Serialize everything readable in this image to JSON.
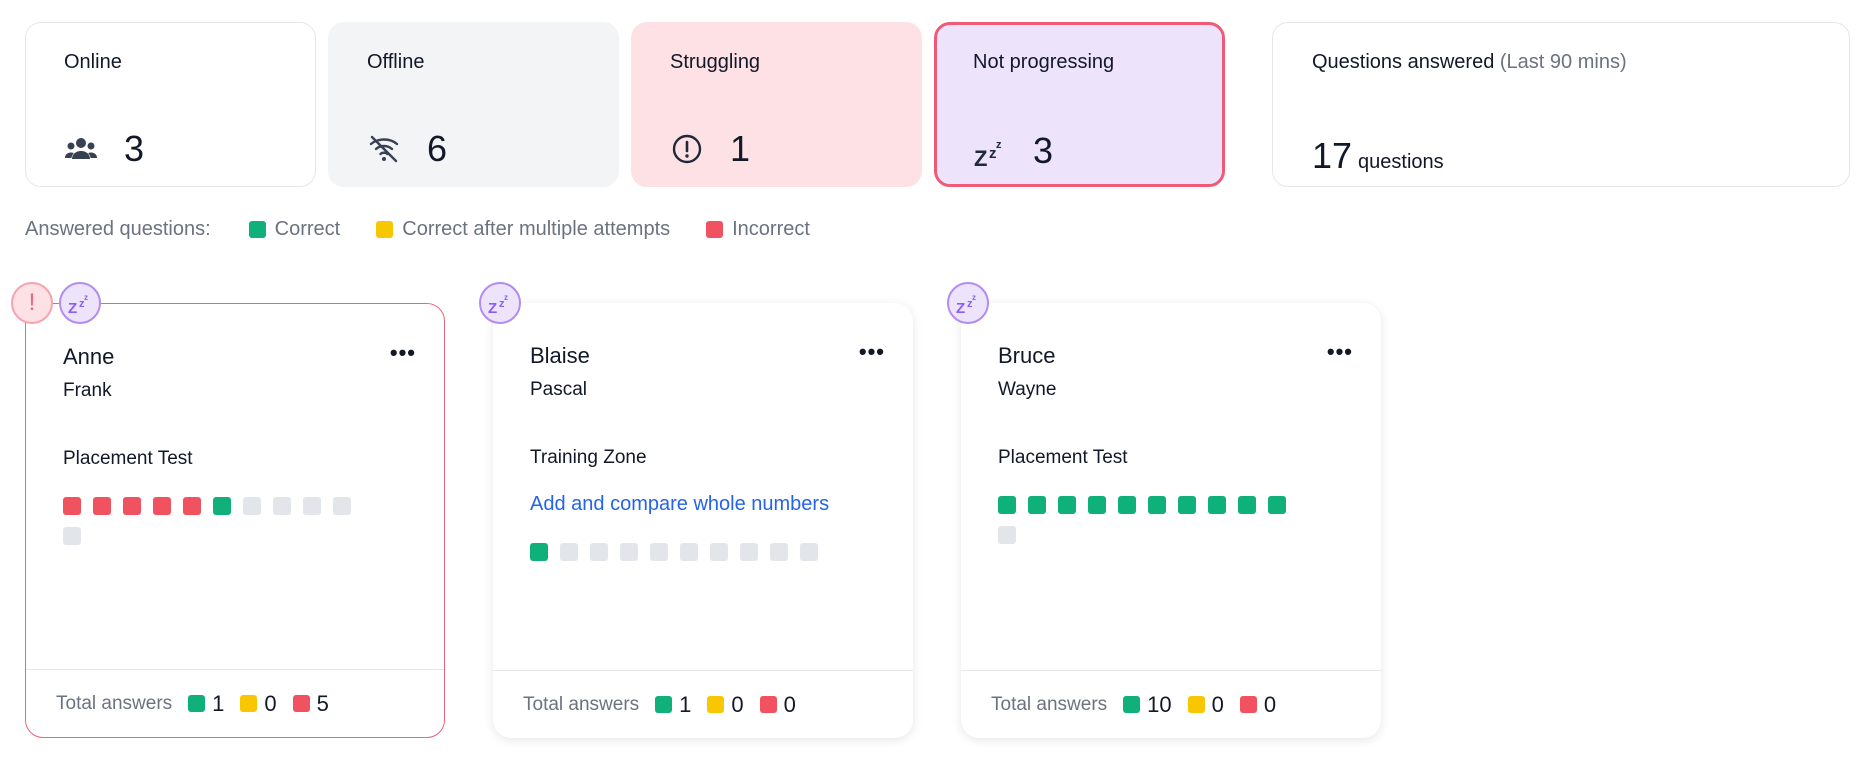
{
  "stats": {
    "online": {
      "label": "Online",
      "value": "3",
      "icon": "people-icon"
    },
    "offline": {
      "label": "Offline",
      "value": "6",
      "icon": "wifi-off-icon"
    },
    "struggling": {
      "label": "Struggling",
      "value": "1",
      "icon": "alert-circle-icon"
    },
    "not_progressing": {
      "label": "Not progressing",
      "value": "3",
      "icon": "zzz-icon"
    },
    "questions": {
      "label": "Questions answered",
      "sublabel": "(Last 90 mins)",
      "value": "17",
      "unit": "questions"
    }
  },
  "legend": {
    "title": "Answered questions:",
    "items": [
      {
        "label": "Correct",
        "color": "#10b07a"
      },
      {
        "label": "Correct after multiple attempts",
        "color": "#f8c701"
      },
      {
        "label": "Incorrect",
        "color": "#f0525f"
      }
    ]
  },
  "colors": {
    "correct": "#10b07a",
    "multiple": "#f8c701",
    "incorrect": "#f0525f",
    "unanswered": "#e2e6ea",
    "link": "#2563eb"
  },
  "students": [
    {
      "first_name": "Anne",
      "last_name": "Frank",
      "activity": "Placement Test",
      "topic": "",
      "badges": [
        "struggling",
        "not-progressing"
      ],
      "answers": [
        "incorrect",
        "incorrect",
        "incorrect",
        "incorrect",
        "incorrect",
        "correct",
        "unanswered",
        "unanswered",
        "unanswered",
        "unanswered",
        "unanswered"
      ],
      "totals": {
        "label": "Total answers",
        "correct": "1",
        "multiple": "0",
        "incorrect": "5"
      }
    },
    {
      "first_name": "Blaise",
      "last_name": "Pascal",
      "activity": "Training Zone",
      "topic": "Add and compare whole numbers",
      "badges": [
        "not-progressing"
      ],
      "answers": [
        "correct",
        "unanswered",
        "unanswered",
        "unanswered",
        "unanswered",
        "unanswered",
        "unanswered",
        "unanswered",
        "unanswered",
        "unanswered"
      ],
      "totals": {
        "label": "Total answers",
        "correct": "1",
        "multiple": "0",
        "incorrect": "0"
      }
    },
    {
      "first_name": "Bruce",
      "last_name": "Wayne",
      "activity": "Placement Test",
      "topic": "",
      "badges": [
        "not-progressing"
      ],
      "answers": [
        "correct",
        "correct",
        "correct",
        "correct",
        "correct",
        "correct",
        "correct",
        "correct",
        "correct",
        "correct",
        "unanswered"
      ],
      "totals": {
        "label": "Total answers",
        "correct": "10",
        "multiple": "0",
        "incorrect": "0"
      }
    }
  ]
}
